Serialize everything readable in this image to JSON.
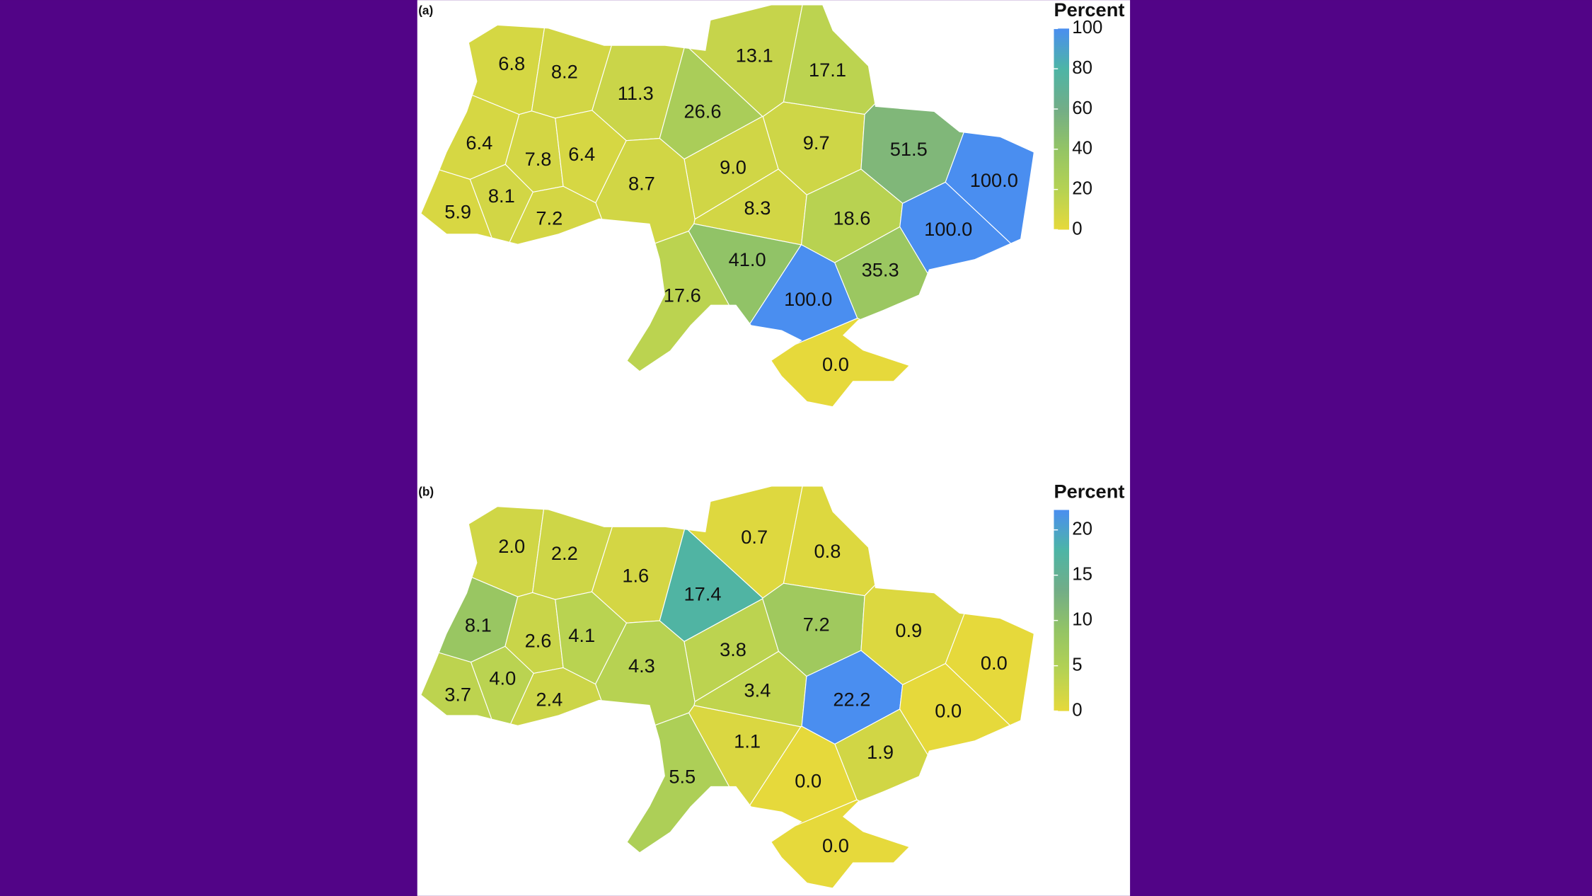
{
  "colors": [
    "#e6d93b",
    "#b5d253",
    "#93c465",
    "#72ad87",
    "#4db5a6",
    "#4a8ef0"
  ],
  "maps": [
    {
      "panel": "(a)",
      "legend_title": "Percent",
      "clim": [
        0,
        100
      ],
      "ticks": [
        0,
        20,
        40,
        60,
        80,
        100
      ],
      "values": [
        6.8,
        8.2,
        13.1,
        17.1,
        11.3,
        26.6,
        6.4,
        7.8,
        6.4,
        9.0,
        9.7,
        51.5,
        100.0,
        8.7,
        5.9,
        8.1,
        7.2,
        8.3,
        18.6,
        100.0,
        41.0,
        35.3,
        17.6,
        100.0,
        0.0
      ],
      "value_labels": [
        "6.8",
        "8.2",
        "13.1",
        "17.1",
        "11.3",
        "26.6",
        "6.4",
        "7.8",
        "6.4",
        "9.0",
        "9.7",
        "51.5",
        "100.0",
        "8.7",
        "5.9",
        "8.1",
        "7.2",
        "8.3",
        "18.6",
        "100.0",
        "41.0",
        "35.3",
        "17.6",
        "100.0",
        "0.0"
      ]
    },
    {
      "panel": "(b)",
      "legend_title": "Percent",
      "clim": [
        0,
        22.2
      ],
      "ticks": [
        0,
        5,
        10,
        15,
        20
      ],
      "values": [
        2.0,
        2.2,
        0.7,
        0.8,
        1.6,
        17.4,
        8.1,
        2.6,
        4.1,
        4.3,
        3.8,
        7.2,
        0.9,
        0.0,
        3.7,
        4.0,
        2.4,
        3.4,
        22.2,
        0.0,
        1.1,
        1.9,
        5.5,
        0.0,
        0.0
      ],
      "value_labels": [
        "2.0",
        "2.2",
        "0.7",
        "0.8",
        "1.6",
        "17.4",
        "8.1",
        "2.6",
        "4.1",
        "4.3",
        "3.8",
        "7.2",
        "0.9",
        "0.0",
        "3.7",
        "4.0",
        "2.4",
        "3.4",
        "22.2",
        "0.0",
        "1.1",
        "1.9",
        "5.5",
        "0.0",
        "0.0"
      ]
    }
  ]
}
